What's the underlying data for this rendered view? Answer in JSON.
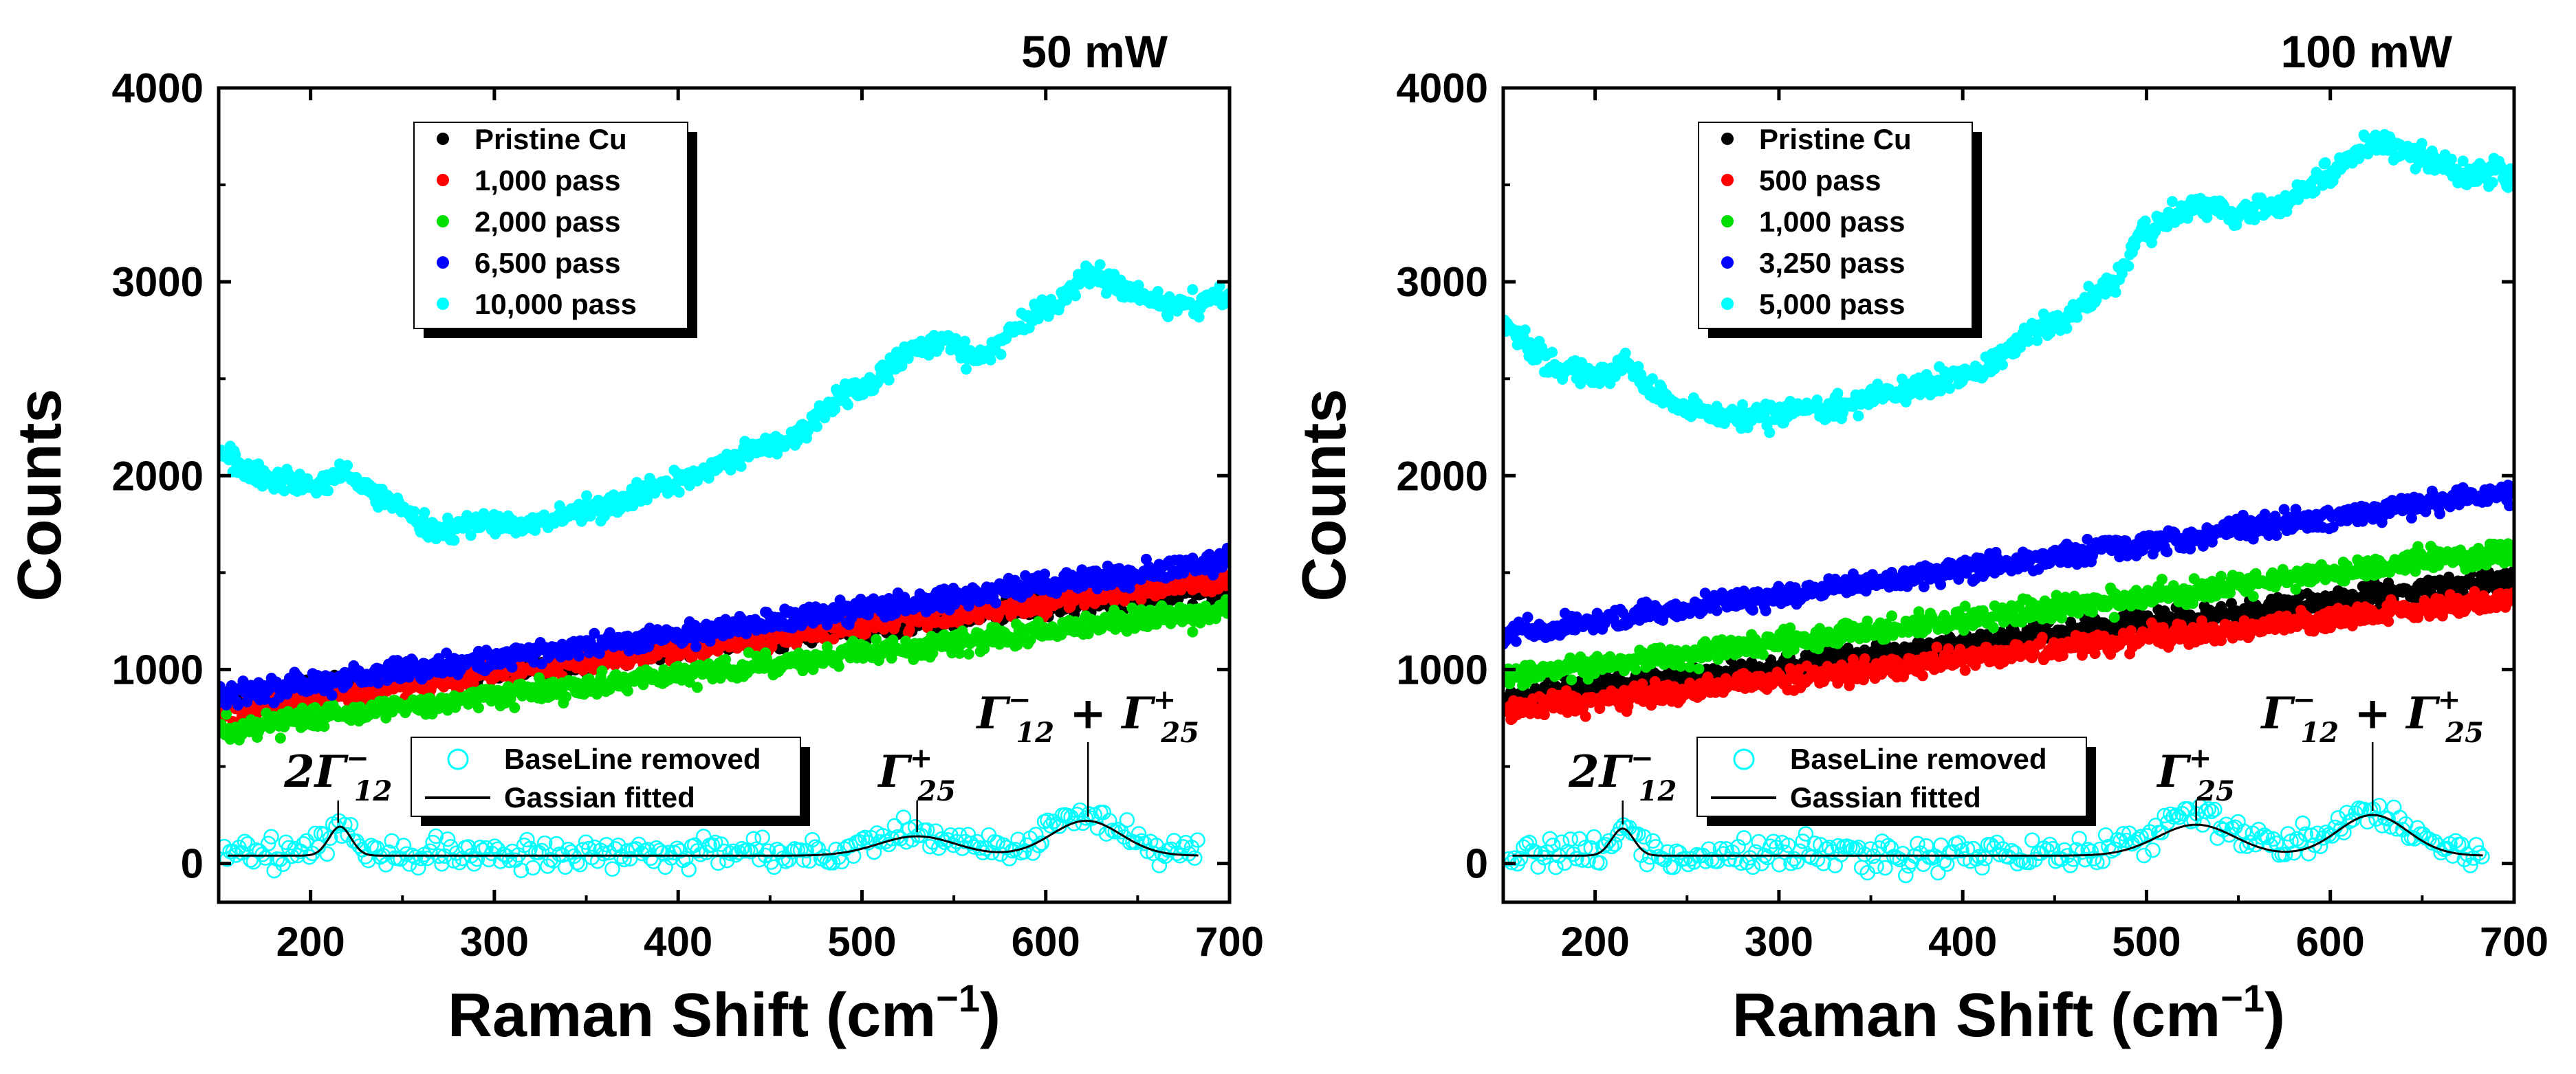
{
  "chart_data": [
    {
      "type": "scatter",
      "title": "50 mW",
      "xlabel": "Raman Shift (cm",
      "xlabel_sup": "−1",
      "xlabel_close": ")",
      "ylabel": "Counts",
      "xlim": [
        150,
        700
      ],
      "ylim": [
        -200,
        4000
      ],
      "xticks": [
        200,
        300,
        400,
        500,
        600,
        700
      ],
      "yticks": [
        0,
        1000,
        2000,
        3000,
        4000
      ],
      "legend_position": "top-left",
      "series": [
        {
          "name": "Pristine Cu",
          "color": "#000000",
          "order": 0,
          "start": 840,
          "end": 1430,
          "noise": 40
        },
        {
          "name": "1,000 pass",
          "color": "#ff0000",
          "order": 1,
          "start": 800,
          "end": 1470,
          "noise": 40
        },
        {
          "name": "2,000 pass",
          "color": "#00e000",
          "order": 2,
          "start": 690,
          "end": 1310,
          "noise": 40
        },
        {
          "name": "6,500 pass",
          "color": "#0000ff",
          "order": 3,
          "start": 870,
          "end": 1560,
          "noise": 40
        },
        {
          "name": "10,000 pass",
          "color": "#00ffff",
          "order": 4,
          "noise": 40,
          "curve": [
            [
              150,
              2100
            ],
            [
              180,
              1980
            ],
            [
              205,
              1950
            ],
            [
              215,
              2030
            ],
            [
              240,
              1880
            ],
            [
              265,
              1730
            ],
            [
              300,
              1760
            ],
            [
              320,
              1750
            ],
            [
              350,
              1820
            ],
            [
              400,
              1980
            ],
            [
              450,
              2150
            ],
            [
              500,
              2450
            ],
            [
              530,
              2650
            ],
            [
              545,
              2700
            ],
            [
              560,
              2600
            ],
            [
              600,
              2860
            ],
            [
              625,
              3030
            ],
            [
              650,
              2950
            ],
            [
              670,
              2870
            ],
            [
              700,
              2920
            ]
          ]
        }
      ],
      "baseline_removed": {
        "name": "BaseLine removed",
        "color": "#00ffff",
        "baseline": 50,
        "peaks": [
          [
            216,
            160,
            7
          ],
          [
            530,
            110,
            22
          ],
          [
            622,
            185,
            20
          ]
        ],
        "noise": 55
      },
      "gaussian_fit": {
        "name": "Gassian fitted",
        "color": "#000000",
        "baseline": 40,
        "peaks": [
          [
            216,
            150,
            6
          ],
          [
            530,
            100,
            21
          ],
          [
            622,
            180,
            19
          ]
        ]
      },
      "annotations": [
        {
          "text": "2Γ",
          "sub": "12",
          "sup": "−",
          "x": 215
        },
        {
          "text": "Γ",
          "sub": "25",
          "sup": "+",
          "x": 530
        },
        {
          "text": "Γ",
          "sub": "12",
          "sup": "−",
          "tail": " + Γ",
          "sub2": "25",
          "sup2": "+",
          "x": 623
        }
      ]
    },
    {
      "type": "scatter",
      "title": "100 mW",
      "xlabel": "Raman Shift (cm",
      "xlabel_sup": "−1",
      "xlabel_close": ")",
      "ylabel": "Counts",
      "xlim": [
        150,
        700
      ],
      "ylim": [
        -200,
        4000
      ],
      "xticks": [
        200,
        300,
        400,
        500,
        600,
        700
      ],
      "yticks": [
        0,
        1000,
        2000,
        3000,
        4000
      ],
      "legend_position": "top-left",
      "series": [
        {
          "name": "Pristine Cu",
          "color": "#000000",
          "order": 0,
          "start": 850,
          "end": 1470,
          "noise": 40
        },
        {
          "name": "500 pass",
          "color": "#ff0000",
          "order": 1,
          "start": 790,
          "end": 1370,
          "noise": 40
        },
        {
          "name": "1,000 pass",
          "color": "#00e000",
          "order": 2,
          "start": 960,
          "end": 1620,
          "noise": 40
        },
        {
          "name": "3,250 pass",
          "color": "#0000ff",
          "order": 3,
          "start": 1180,
          "end": 1920,
          "noise": 40
        },
        {
          "name": "5,000 pass",
          "color": "#00ffff",
          "order": 4,
          "noise": 45,
          "curve": [
            [
              150,
              2780
            ],
            [
              180,
              2560
            ],
            [
              200,
              2500
            ],
            [
              215,
              2570
            ],
            [
              230,
              2450
            ],
            [
              250,
              2350
            ],
            [
              280,
              2300
            ],
            [
              320,
              2330
            ],
            [
              360,
              2420
            ],
            [
              400,
              2520
            ],
            [
              450,
              2780
            ],
            [
              480,
              2980
            ],
            [
              500,
              3280
            ],
            [
              530,
              3410
            ],
            [
              550,
              3350
            ],
            [
              570,
              3400
            ],
            [
              600,
              3560
            ],
            [
              625,
              3720
            ],
            [
              650,
              3640
            ],
            [
              670,
              3560
            ],
            [
              700,
              3550
            ]
          ]
        }
      ],
      "baseline_removed": {
        "name": "BaseLine removed",
        "color": "#00ffff",
        "baseline": 50,
        "peaks": [
          [
            215,
            130,
            7
          ],
          [
            527,
            190,
            22
          ],
          [
            623,
            215,
            21
          ]
        ],
        "noise": 60
      },
      "gaussian_fit": {
        "name": "Gassian fitted",
        "color": "#000000",
        "baseline": 40,
        "peaks": [
          [
            215,
            140,
            6
          ],
          [
            527,
            160,
            21
          ],
          [
            623,
            210,
            19
          ]
        ]
      },
      "annotations": [
        {
          "text": "2Γ",
          "sub": "12",
          "sup": "−",
          "x": 215
        },
        {
          "text": "Γ",
          "sub": "25",
          "sup": "+",
          "x": 527
        },
        {
          "text": "Γ",
          "sub": "12",
          "sup": "−",
          "tail": " + Γ",
          "sub2": "25",
          "sup2": "+",
          "x": 623
        }
      ]
    }
  ]
}
